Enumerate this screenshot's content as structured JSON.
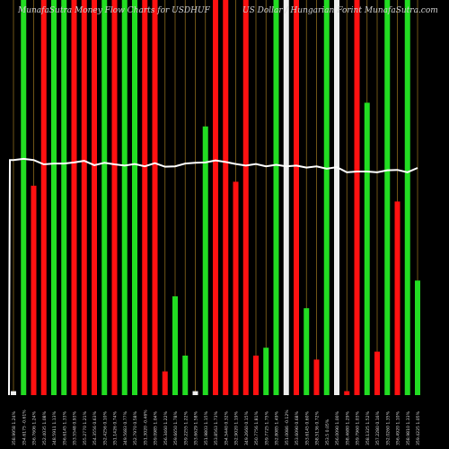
{
  "header": {
    "left_text": "MunafaSutra Money Flow Charts for USDHUF",
    "right_text": "US Dollar / Hungarian Forint MunafaSutra.com"
  },
  "colors": {
    "background": "#000000",
    "up": "#22dd22",
    "down": "#ff1111",
    "neutral": "#eeeeee",
    "gridline": "#8a6a1c",
    "price_line": "#ffffff"
  },
  "chart_data": {
    "type": "bar",
    "title": "MunafaSutra Money Flow Charts for USDHUF",
    "subtitle": "US Dollar / Hungarian Forint MunafaSutra.com",
    "ylim": [
      0,
      100
    ],
    "categories": [
      "358.9958 1.24%",
      "354.6175 -0.61%",
      "356.7606 1.24%",
      "352.4035 1.08%",
      "348.5911 1.13%",
      "356.6145 1.33%",
      "353.5548 0.93%",
      "355.2770 1.21%",
      "354.3556 0.63%",
      "352.4256 0.10%",
      "351.1426 0.74%",
      "349.5683 0.77%",
      "352.7970 0.58%",
      "351.3020 -0.46%",
      "359.0985 1.04%",
      "356.3460 1.22%",
      "359.6650 1.78%",
      "359.2255 1.22%",
      "353.6629 1.58%",
      "351.9803 1.15%",
      "353.8563 1.73%",
      "354.5440 0.32%",
      "352.9020 1.19%",
      "349.2660 0.15%",
      "350.7756 1.81%",
      "359.7725 1.75%",
      "352.8085 1.49%",
      "351.0086 -0.12%",
      "353.6090 0.68%",
      "353.6145 0.60%",
      "358.5136 0.72%",
      "353.5 0.05%",
      "356.0090 1.00%",
      "358.4680 1.29%",
      "359.7960 1.03%",
      "358.1325 1.52%",
      "357.2280 0.16%",
      "352.0260 1.35%",
      "356.4920 1.10%",
      "358.9810 1.33%",
      "359.4225 1.05%"
    ],
    "series": [
      {
        "name": "",
        "values": [
          1,
          100,
          53,
          100,
          100,
          100,
          100,
          100,
          100,
          100,
          100,
          100,
          100,
          100,
          100,
          6,
          25,
          10,
          1,
          68,
          100,
          100,
          54,
          100,
          10,
          12,
          100,
          100,
          100,
          22,
          9,
          100,
          100,
          1,
          100,
          74,
          11,
          100,
          49,
          100,
          29
        ],
        "direction": [
          "flat",
          "up",
          "down",
          "down",
          "up",
          "up",
          "down",
          "down",
          "down",
          "up",
          "down",
          "up",
          "up",
          "down",
          "down",
          "down",
          "up",
          "up",
          "flat",
          "up",
          "down",
          "down",
          "down",
          "down",
          "down",
          "up",
          "up",
          "flat",
          "down",
          "up",
          "down",
          "up",
          "flat",
          "down",
          "down",
          "up",
          "down",
          "up",
          "down",
          "up",
          "up"
        ]
      },
      {
        "name": "",
        "type": "line",
        "values": [
          59.5,
          59.8,
          59.5,
          58.4,
          58.6,
          58.6,
          58.9,
          59.3,
          58.2,
          58.8,
          58.4,
          58.1,
          58.5,
          57.9,
          58.7,
          57.8,
          57.9,
          58.6,
          58.8,
          58.9,
          59.4,
          59.0,
          58.5,
          58.1,
          58.5,
          57.9,
          58.3,
          57.9,
          58.1,
          57.6,
          57.9,
          57.3,
          57.7,
          56.4,
          56.6,
          56.6,
          56.4,
          56.9,
          57.0,
          56.4,
          57.5
        ]
      }
    ],
    "grid": true,
    "legend": "none"
  }
}
